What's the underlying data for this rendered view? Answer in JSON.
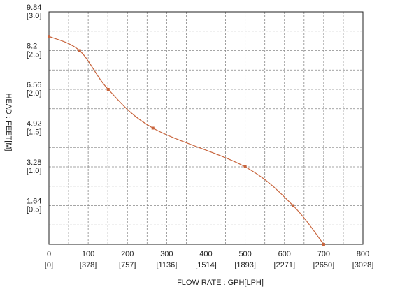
{
  "chart_data": {
    "type": "line",
    "x_label": "FLOW RATE : GPH[LPH]",
    "y_label": "HEAD : FEET[M]",
    "xlim": [
      0,
      800
    ],
    "ylim": [
      0,
      9.84
    ],
    "xticks": [
      0,
      100,
      200,
      300,
      400,
      500,
      600,
      700,
      800
    ],
    "xticks_metric": [
      "[0]",
      "[378]",
      "[757]",
      "[1136]",
      "[1514]",
      "[1893]",
      "[2271]",
      "[2650]",
      "[3028]"
    ],
    "yticks": [
      1.64,
      3.28,
      4.92,
      6.56,
      8.2,
      {
        "value": 9.84,
        "label": "9.84"
      }
    ],
    "yticks_metric": [
      "[0.5]",
      "[1.0]",
      "[1.5]",
      "[2.0]",
      "[2.5]",
      "[3.0]"
    ],
    "minor_xticks": [
      50,
      150,
      250,
      350,
      450,
      550,
      650,
      750
    ],
    "minor_yticks": [
      0.82,
      2.46,
      4.1,
      5.74,
      7.38,
      9.02
    ],
    "grid": true,
    "series": [
      {
        "color": "#c8643c",
        "x": [
          0,
          78,
          151,
          265,
          500,
          622,
          700
        ],
        "values": [
          8.8,
          8.2,
          6.56,
          4.92,
          3.28,
          1.64,
          0
        ]
      }
    ]
  }
}
